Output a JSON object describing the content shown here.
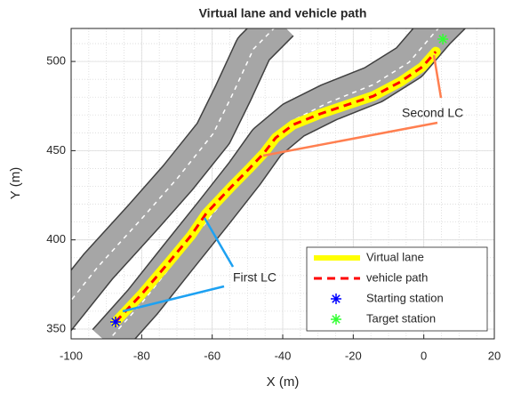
{
  "chart_data": {
    "type": "line",
    "title": "Virtual lane and vehicle path",
    "xlabel": "X (m)",
    "ylabel": "Y (m)",
    "xlim": [
      -100,
      20
    ],
    "ylim": [
      344.5,
      518.5
    ],
    "xticks": [
      -100,
      -80,
      -60,
      -40,
      -20,
      0,
      20
    ],
    "yticks": [
      350,
      400,
      450,
      500
    ],
    "grid": true,
    "minor_grid": true,
    "legend": "lower right",
    "roads": [
      {
        "color": "#a6a6a6",
        "x": [
          -104.5,
          -92.4,
          -79.8,
          -69.8,
          -59.7,
          -54.1,
          -48.3,
          -40.8
        ],
        "y": [
          355.0,
          384.9,
          412.3,
          434.7,
          459.6,
          482.1,
          507.0,
          521.9
        ]
      },
      {
        "color": "#a6a6a6",
        "x": [
          -89.9,
          -79.8,
          -69.8,
          -59.7,
          -50.8,
          -44.5,
          -37.0,
          -26.9,
          -14.3,
          -4.2,
          3.4,
          8.4
        ],
        "y": [
          342.6,
          365.0,
          389.9,
          414.8,
          437.2,
          454.7,
          467.1,
          477.1,
          487.0,
          499.5,
          517.0,
          526.9
        ]
      }
    ],
    "series": [
      {
        "name": "Virtual lane",
        "color": "#ffff00",
        "style": "thick",
        "x": [
          -87.4,
          -79.8,
          -72.3,
          -66.0,
          -61.7,
          -54.6,
          -49.6,
          -45.3,
          -42.0,
          -37.0,
          -29.4,
          -21.9,
          -14.3,
          -6.7,
          -0.4,
          3.4
        ],
        "y": [
          354.0,
          370.0,
          387.4,
          402.4,
          414.8,
          429.7,
          439.7,
          448.7,
          457.2,
          464.6,
          470.6,
          475.6,
          480.6,
          488.5,
          497.0,
          505.5
        ]
      },
      {
        "name": "vehicle path",
        "color": "#ff0000",
        "style": "dashed",
        "x": [
          -87.4,
          -79.8,
          -72.3,
          -66.0,
          -61.7,
          -54.6,
          -49.6,
          -45.3,
          -42.0,
          -37.0,
          -29.4,
          -21.9,
          -14.3,
          -6.7,
          -0.4,
          3.4
        ],
        "y": [
          354.0,
          370.0,
          387.4,
          402.4,
          414.8,
          429.7,
          439.7,
          448.7,
          457.2,
          464.6,
          470.6,
          475.6,
          480.6,
          488.5,
          497.0,
          505.5
        ]
      },
      {
        "name": "Starting station",
        "color": "#0000ff",
        "style": "asterisk",
        "x": [
          -87.4
        ],
        "y": [
          354.0
        ]
      },
      {
        "name": "Target station",
        "color": "#33ff33",
        "style": "asterisk",
        "x": [
          5.4
        ],
        "y": [
          512.5
        ]
      }
    ],
    "annotations": [
      "First LC",
      "Second LC"
    ]
  }
}
